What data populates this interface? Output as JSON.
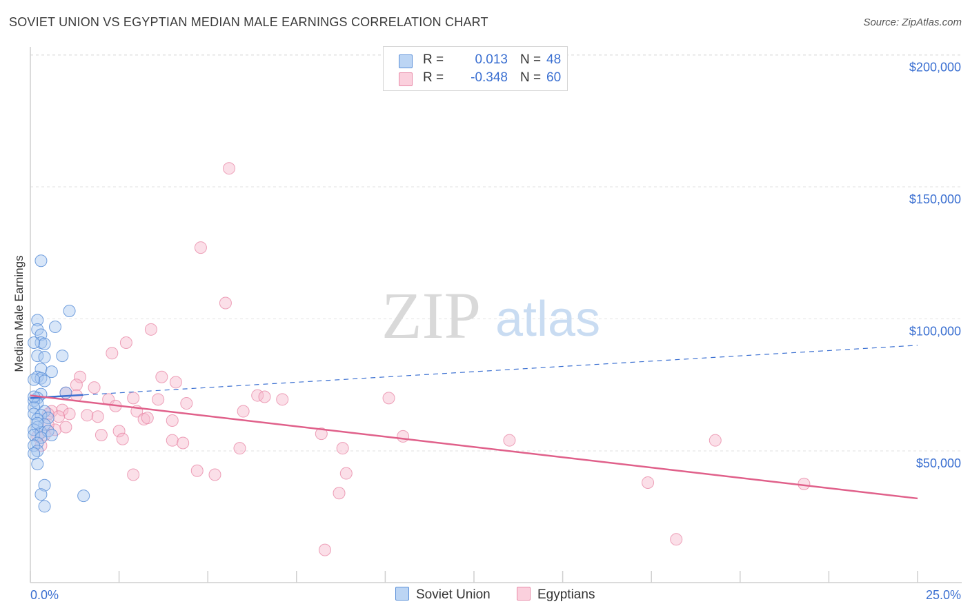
{
  "header": {
    "title": "SOVIET UNION VS EGYPTIAN MEDIAN MALE EARNINGS CORRELATION CHART",
    "source": "Source: ZipAtlas.com"
  },
  "legend": {
    "series": [
      {
        "r_label": "R =",
        "r_value": "0.013",
        "n_label": "N =",
        "n_value": "48"
      },
      {
        "r_label": "R =",
        "r_value": "-0.348",
        "n_label": "N =",
        "n_value": "60"
      }
    ]
  },
  "watermark": {
    "zip": "ZIP",
    "atlas": "atlas"
  },
  "colors": {
    "soviet_fill": "#a8c8f0",
    "soviet_stroke": "#5a8fd8",
    "soviet_line": "#3a6fd1",
    "egypt_fill": "#f7b8cb",
    "egypt_stroke": "#e88aa8",
    "egypt_line": "#e0608a",
    "grid": "#e2e2e2",
    "accent_text": "#3a6fd1"
  },
  "chart_data": {
    "type": "scatter",
    "title": "SOVIET UNION VS EGYPTIAN MEDIAN MALE EARNINGS CORRELATION CHART",
    "xlabel": "",
    "ylabel": "Median Male Earnings",
    "xlim": [
      0,
      25
    ],
    "ylim": [
      0,
      210000
    ],
    "x_tick_labels": [
      "0.0%",
      "25.0%"
    ],
    "y_ticks": [
      50000,
      100000,
      150000,
      200000
    ],
    "y_tick_labels": [
      "$50,000",
      "$100,000",
      "$150,000",
      "$200,000"
    ],
    "grid": true,
    "series": [
      {
        "name": "Soviet Union",
        "r": 0.013,
        "n": 48,
        "trend": {
          "solid_x": [
            0,
            1.5
          ],
          "x": [
            0,
            25
          ],
          "y": [
            70000,
            90000
          ]
        },
        "points": [
          [
            0.3,
            122000
          ],
          [
            1.1,
            103000
          ],
          [
            0.7,
            97000
          ],
          [
            0.2,
            99500
          ],
          [
            0.2,
            96000
          ],
          [
            0.3,
            94000
          ],
          [
            0.3,
            91000
          ],
          [
            0.4,
            90500
          ],
          [
            0.1,
            91000
          ],
          [
            0.9,
            86000
          ],
          [
            0.2,
            86000
          ],
          [
            0.4,
            85500
          ],
          [
            0.3,
            81000
          ],
          [
            0.6,
            80000
          ],
          [
            0.2,
            78000
          ],
          [
            0.3,
            77500
          ],
          [
            0.4,
            76500
          ],
          [
            0.1,
            77000
          ],
          [
            1.0,
            72000
          ],
          [
            0.3,
            71500
          ],
          [
            0.2,
            70000
          ],
          [
            0.1,
            69000
          ],
          [
            0.2,
            68000
          ],
          [
            0.1,
            66500
          ],
          [
            0.4,
            65000
          ],
          [
            0.1,
            64000
          ],
          [
            0.3,
            63500
          ],
          [
            0.5,
            62500
          ],
          [
            0.2,
            62000
          ],
          [
            0.4,
            60000
          ],
          [
            0.2,
            59000
          ],
          [
            0.1,
            58000
          ],
          [
            0.3,
            57000
          ],
          [
            0.5,
            57500
          ],
          [
            0.6,
            56000
          ],
          [
            0.1,
            56000
          ],
          [
            0.3,
            55000
          ],
          [
            0.2,
            53000
          ],
          [
            0.1,
            52000
          ],
          [
            0.2,
            50000
          ],
          [
            0.1,
            49000
          ],
          [
            0.2,
            45000
          ],
          [
            0.4,
            37000
          ],
          [
            0.3,
            33500
          ],
          [
            1.5,
            33000
          ],
          [
            0.4,
            29000
          ],
          [
            0.1,
            70500
          ],
          [
            0.2,
            60500
          ]
        ]
      },
      {
        "name": "Egyptians",
        "r": -0.348,
        "n": 60,
        "trend": {
          "x": [
            0,
            25
          ],
          "y": [
            71000,
            32000
          ]
        },
        "points": [
          [
            5.6,
            157000
          ],
          [
            4.8,
            127000
          ],
          [
            5.5,
            106000
          ],
          [
            3.4,
            96000
          ],
          [
            2.7,
            91000
          ],
          [
            2.3,
            87000
          ],
          [
            1.4,
            78000
          ],
          [
            3.7,
            78000
          ],
          [
            4.1,
            76000
          ],
          [
            1.3,
            75000
          ],
          [
            1.8,
            74000
          ],
          [
            1.0,
            72000
          ],
          [
            6.4,
            71000
          ],
          [
            6.6,
            70500
          ],
          [
            7.1,
            69500
          ],
          [
            10.1,
            70000
          ],
          [
            2.2,
            69500
          ],
          [
            2.9,
            70000
          ],
          [
            3.6,
            69500
          ],
          [
            0.6,
            65000
          ],
          [
            0.9,
            65500
          ],
          [
            1.1,
            64000
          ],
          [
            0.5,
            64000
          ],
          [
            1.6,
            63500
          ],
          [
            4.4,
            68000
          ],
          [
            3.0,
            65000
          ],
          [
            0.8,
            63000
          ],
          [
            1.9,
            63000
          ],
          [
            3.2,
            62000
          ],
          [
            4.0,
            61500
          ],
          [
            2.4,
            67000
          ],
          [
            3.3,
            62500
          ],
          [
            6.0,
            65000
          ],
          [
            0.7,
            58000
          ],
          [
            1.0,
            59000
          ],
          [
            0.4,
            56000
          ],
          [
            2.0,
            56000
          ],
          [
            2.5,
            57500
          ],
          [
            4.0,
            54000
          ],
          [
            4.3,
            53000
          ],
          [
            8.2,
            56500
          ],
          [
            10.5,
            55500
          ],
          [
            13.5,
            54000
          ],
          [
            19.3,
            54000
          ],
          [
            2.6,
            54500
          ],
          [
            5.9,
            51000
          ],
          [
            8.8,
            51000
          ],
          [
            0.3,
            52000
          ],
          [
            4.7,
            42500
          ],
          [
            5.2,
            41000
          ],
          [
            2.9,
            41000
          ],
          [
            8.9,
            41500
          ],
          [
            8.7,
            34000
          ],
          [
            17.4,
            38000
          ],
          [
            21.8,
            37500
          ],
          [
            8.3,
            12500
          ],
          [
            18.2,
            16500
          ],
          [
            0.2,
            55500
          ],
          [
            0.5,
            60000
          ],
          [
            1.3,
            71000
          ]
        ]
      }
    ]
  },
  "bottom_legend": {
    "soviet": "Soviet Union",
    "egypt": "Egyptians"
  }
}
